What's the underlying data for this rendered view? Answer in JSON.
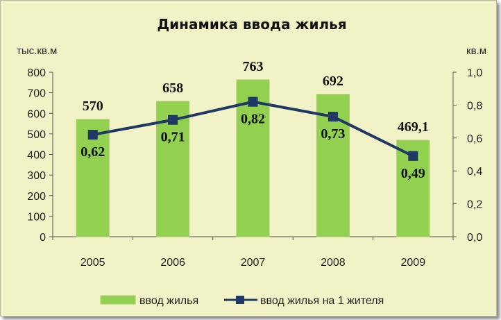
{
  "chart_data": {
    "type": "bar",
    "title": "Динамика ввода жилья",
    "y_left_label": "тыс.кв.м",
    "y_right_label": "кв.м",
    "categories": [
      "2005",
      "2006",
      "2007",
      "2008",
      "2009"
    ],
    "y_left_ticks": [
      "0",
      "100",
      "200",
      "300",
      "400",
      "500",
      "600",
      "700",
      "800"
    ],
    "y_left_lim": [
      0,
      800
    ],
    "y_right_ticks": [
      "0,0",
      "0,2",
      "0,4",
      "0,6",
      "0,8",
      "1,0"
    ],
    "y_right_lim": [
      0,
      1.0
    ],
    "series": [
      {
        "name": "ввод жилья",
        "type": "bar",
        "axis": "left",
        "color": "#92d050",
        "values": [
          570,
          658,
          763,
          692,
          469.1
        ],
        "labels": [
          "570",
          "658",
          "763",
          "692",
          "469,1"
        ]
      },
      {
        "name": "ввод жилья на 1 жителя",
        "type": "line",
        "axis": "right",
        "color": "#1f3864",
        "values": [
          0.62,
          0.71,
          0.82,
          0.73,
          0.49
        ],
        "labels": [
          "0,62",
          "0,71",
          "0,82",
          "0,73",
          "0,49"
        ]
      }
    ],
    "legend": "bottom",
    "grid": false
  }
}
